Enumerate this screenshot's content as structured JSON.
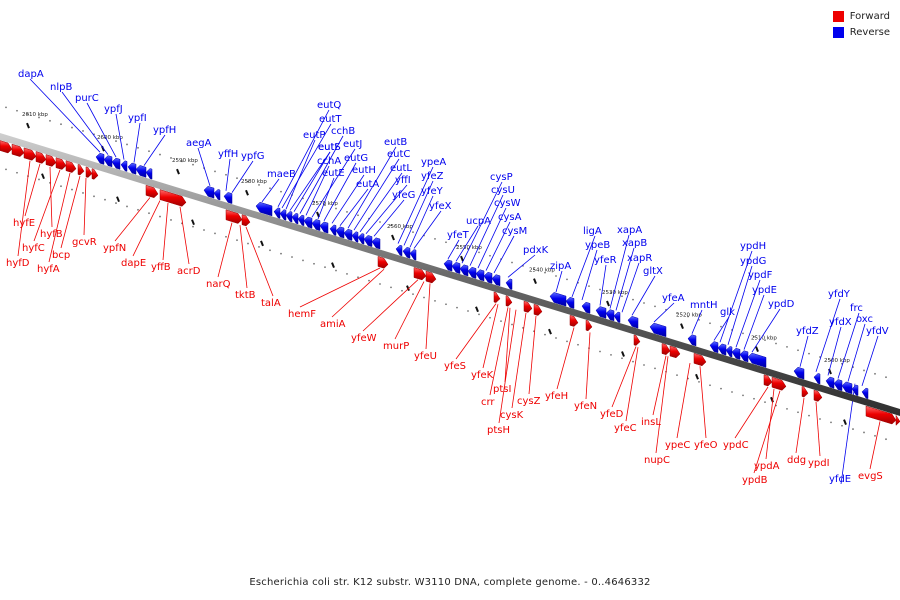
{
  "colors": {
    "forward": "#ee0000",
    "reverse": "#0000ee",
    "axis": "#555555"
  },
  "legend": [
    {
      "label": "Forward",
      "color": "#ee0000"
    },
    {
      "label": "Reverse",
      "color": "#0000ee"
    }
  ],
  "caption": "Escherichia coli str. K12 substr. W3110 DNA, complete genome. - 0..4646332",
  "ticks": [
    "2610 kbp",
    "2600 kbp",
    "2590 kbp",
    "2580 kbp",
    "2570 kbp",
    "2560 kbp",
    "2550 kbp",
    "2540 kbp",
    "2530 kbp",
    "2520 kbp",
    "2510 kbp",
    "2500 kbp"
  ],
  "reverse_genes": [
    "dapA",
    "nlpB",
    "purC",
    "ypfJ",
    "ypfI",
    "ypfH",
    "aegA",
    "yffH",
    "ypfG",
    "maeB",
    "eutQ",
    "eutT",
    "eutP",
    "eutS",
    "eutI",
    "cchB",
    "cchA",
    "eutJ",
    "eutE",
    "eutG",
    "eutH",
    "eutA",
    "eutB",
    "eutC",
    "eutL",
    "yffI",
    "yfeG",
    "ypeA",
    "yfeZ",
    "yfeY",
    "yfeX",
    "yfeT",
    "ucpA",
    "cysP",
    "cysU",
    "cysW",
    "cysA",
    "cysM",
    "pdxK",
    "zipA",
    "ligA",
    "ypeB",
    "yfeR",
    "xapA",
    "xapB",
    "xapR",
    "gltX",
    "yfeA",
    "mntH",
    "glk",
    "ypdH",
    "ypdG",
    "ypdF",
    "ypdE",
    "ypdD",
    "yfdZ",
    "yfdY",
    "yfdX",
    "frc",
    "oxc",
    "yfdV",
    "yfdE"
  ],
  "forward_genes": [
    "hyfE",
    "hyfB",
    "hyfC",
    "hyfD",
    "hyfA",
    "bcp",
    "gcvR",
    "ypfN",
    "dapE",
    "yffB",
    "acrD",
    "narQ",
    "tktB",
    "talA",
    "hemF",
    "amiA",
    "yfeW",
    "murP",
    "yfeU",
    "yfeS",
    "yfeK",
    "crr",
    "ptsI",
    "ptsH",
    "cysK",
    "cysZ",
    "yfeH",
    "yfeN",
    "yfeD",
    "yfeC",
    "insL",
    "nupC",
    "ypeC",
    "yfeO",
    "ypdC",
    "ypdA",
    "ypdB",
    "ddg",
    "ypdI",
    "evgS"
  ]
}
